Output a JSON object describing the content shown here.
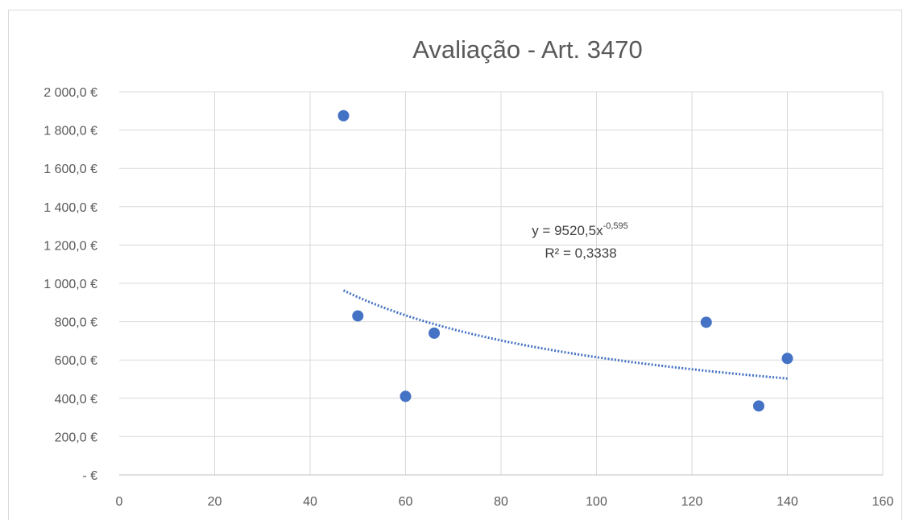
{
  "chart_data": {
    "type": "scatter",
    "title": "Avaliação - Art. 3470",
    "xlabel": "",
    "ylabel": "",
    "xlim": [
      0,
      160
    ],
    "ylim": [
      0,
      2000
    ],
    "x_ticks": [
      0,
      20,
      40,
      60,
      80,
      100,
      120,
      140,
      160
    ],
    "x_tick_labels": [
      "0",
      "20",
      "40",
      "60",
      "80",
      "100",
      "120",
      "140",
      "160"
    ],
    "y_ticks": [
      0,
      200,
      400,
      600,
      800,
      1000,
      1200,
      1400,
      1600,
      1800,
      2000
    ],
    "y_tick_labels": [
      "-   €",
      "200,0 €",
      "400,0 €",
      "600,0 €",
      "800,0 €",
      "1 000,0 €",
      "1 200,0 €",
      "1 400,0 €",
      "1 600,0 €",
      "1 800,0 €",
      "2 000,0 €"
    ],
    "grid": true,
    "series": [
      {
        "color": "#4472c4",
        "points": [
          {
            "x": 47,
            "y": 1875
          },
          {
            "x": 50,
            "y": 830
          },
          {
            "x": 60,
            "y": 410
          },
          {
            "x": 66,
            "y": 740
          },
          {
            "x": 123,
            "y": 797
          },
          {
            "x": 134,
            "y": 360
          },
          {
            "x": 140,
            "y": 608
          }
        ]
      }
    ],
    "trendline": {
      "type": "power",
      "coefficient": 9520.5,
      "exponent": -0.595,
      "x_range": [
        47,
        140
      ],
      "color": "#4472c4",
      "style": "dotted",
      "equation_prefix": "y = 9520,5x",
      "equation_exponent": "-0,595",
      "r_squared_label": "R² = 0,3338"
    }
  }
}
